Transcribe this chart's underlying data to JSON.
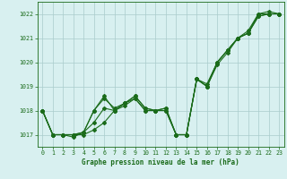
{
  "x": [
    0,
    1,
    2,
    3,
    4,
    5,
    6,
    7,
    8,
    9,
    10,
    11,
    12,
    13,
    14,
    15,
    16,
    17,
    18,
    19,
    20,
    21,
    22,
    23
  ],
  "lines": [
    [
      1018.0,
      1017.0,
      1017.0,
      1016.9,
      1017.1,
      1018.0,
      1018.6,
      1018.0,
      1018.3,
      1018.5,
      1018.0,
      1018.0,
      1018.1,
      1017.0,
      1017.0,
      1019.3,
      1019.1,
      1020.0,
      1020.5,
      1021.0,
      1021.2,
      1022.0,
      1022.0,
      1022.0
    ],
    [
      1018.0,
      1017.0,
      1017.0,
      1017.0,
      1017.1,
      1018.0,
      1018.5,
      1018.1,
      1018.3,
      1018.6,
      1018.1,
      1018.0,
      1018.0,
      1017.0,
      1017.0,
      1019.3,
      1019.0,
      1020.0,
      1020.5,
      1021.0,
      1021.3,
      1022.0,
      1022.1,
      1022.0
    ],
    [
      1018.0,
      1017.0,
      1017.0,
      1017.0,
      1017.1,
      1017.5,
      1018.1,
      1018.0,
      1018.3,
      1018.6,
      1018.1,
      1018.0,
      1018.0,
      1017.0,
      1017.0,
      1019.3,
      1019.0,
      1020.0,
      1020.5,
      1021.0,
      1021.2,
      1021.9,
      1022.0,
      1022.0
    ],
    [
      1018.0,
      1017.0,
      1017.0,
      1017.0,
      1017.0,
      1017.2,
      1017.5,
      1018.0,
      1018.2,
      1018.5,
      1018.0,
      1018.0,
      1018.1,
      1017.0,
      1017.0,
      1019.3,
      1019.0,
      1019.9,
      1020.4,
      1021.0,
      1021.2,
      1021.9,
      1022.0,
      1022.0
    ]
  ],
  "line_color": "#1a6b1a",
  "bg_color": "#d8f0f0",
  "grid_color": "#aacccc",
  "xlabel": "Graphe pression niveau de la mer (hPa)",
  "ylim": [
    1016.5,
    1022.5
  ],
  "xlim": [
    -0.5,
    23.5
  ],
  "yticks": [
    1017,
    1018,
    1019,
    1020,
    1021,
    1022
  ],
  "xticks": [
    0,
    1,
    2,
    3,
    4,
    5,
    6,
    7,
    8,
    9,
    10,
    11,
    12,
    13,
    14,
    15,
    16,
    17,
    18,
    19,
    20,
    21,
    22,
    23
  ],
  "marker": "D",
  "markersize": 2.0,
  "linewidth": 0.8
}
